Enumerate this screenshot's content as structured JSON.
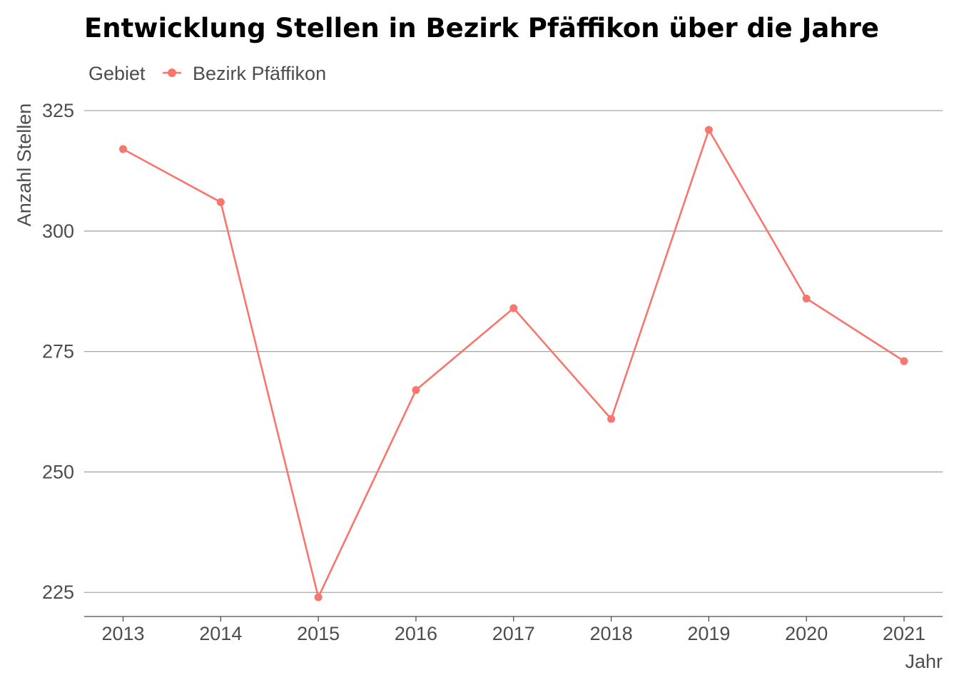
{
  "chart_data": {
    "type": "line",
    "title": "Entwicklung Stellen in Bezirk Pfäffikon über die Jahre",
    "xlabel": "Jahr",
    "ylabel": "Anzahl Stellen",
    "legend": {
      "title": "Gebiet",
      "placement": "top-left"
    },
    "categories": [
      "2013",
      "2014",
      "2015",
      "2016",
      "2017",
      "2018",
      "2019",
      "2020",
      "2021"
    ],
    "yticks": [
      "225",
      "250",
      "275",
      "300",
      "325"
    ],
    "ylim": [
      220,
      329
    ],
    "grid": true,
    "series": [
      {
        "name": "Bezirk Pfäffikon",
        "color": "#f8766d",
        "values": [
          317,
          306,
          224,
          267,
          284,
          261,
          321,
          286,
          273
        ]
      }
    ]
  }
}
